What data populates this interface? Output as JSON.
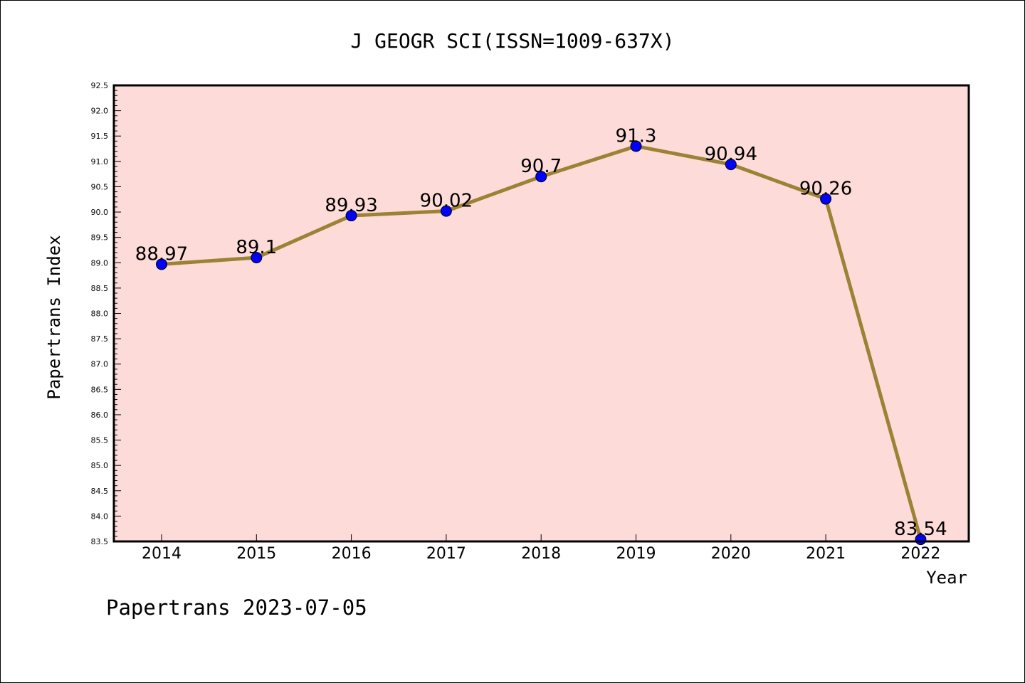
{
  "chart_data": {
    "type": "line",
    "title": "J GEOGR SCI(ISSN=1009-637X)",
    "xlabel": "Year",
    "ylabel": "Papertrans Index",
    "categories": [
      "2014",
      "2015",
      "2016",
      "2017",
      "2018",
      "2019",
      "2020",
      "2021",
      "2022"
    ],
    "series": [
      {
        "values": [
          88.97,
          89.1,
          89.93,
          90.02,
          90.7,
          91.3,
          90.94,
          90.26,
          83.54
        ],
        "labels": [
          "88.97",
          "89.1",
          "89.93",
          "90.02",
          "90.7",
          "91.3",
          "90.94",
          "90.26",
          "83.54"
        ]
      }
    ],
    "ylim": [
      83.5,
      92.5
    ],
    "yticks": [
      "83.5",
      "84.0",
      "84.5",
      "85.0",
      "85.5",
      "86.0",
      "86.5",
      "87.0",
      "87.5",
      "88.0",
      "88.5",
      "89.0",
      "89.5",
      "90.0",
      "90.5",
      "91.0",
      "91.5",
      "92.0",
      "92.5"
    ],
    "grid": false,
    "legend": "none",
    "colors": {
      "plot_background": "#fddbd8",
      "line": "#9b8235",
      "marker": "#0000ff"
    }
  },
  "footer": "Papertrans 2023-07-05"
}
